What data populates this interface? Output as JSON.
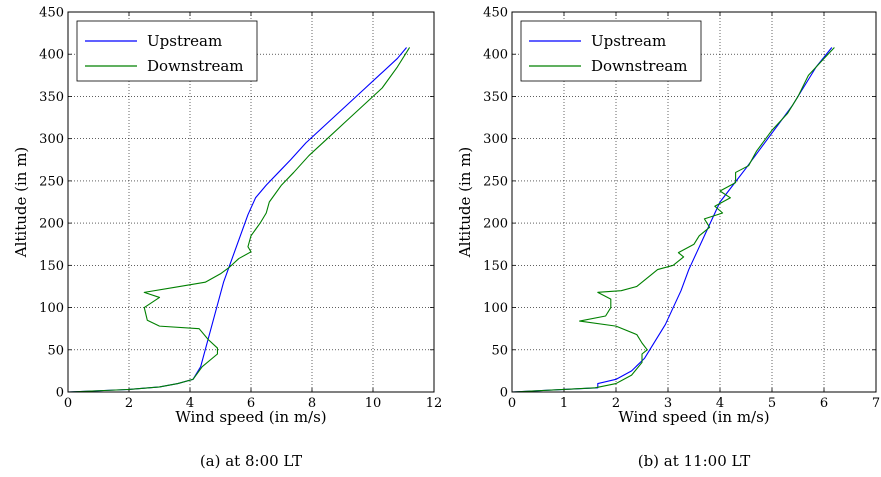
{
  "chart_data": [
    {
      "type": "line",
      "caption": "(a) at 8:00 LT",
      "xlabel": "Wind speed (in m/s)",
      "ylabel": "Altitude (in m)",
      "xlim": [
        0,
        12
      ],
      "ylim": [
        0,
        450
      ],
      "xticks": [
        "0",
        "2",
        "4",
        "6",
        "8",
        "10",
        "12"
      ],
      "yticks": [
        "0",
        "50",
        "100",
        "150",
        "200",
        "250",
        "300",
        "350",
        "400",
        "450"
      ],
      "grid": true,
      "legend_position": "top-left",
      "series": [
        {
          "name": "Upstream",
          "color": "#0000ff",
          "points": [
            [
              0,
              0
            ],
            [
              2.0,
              3
            ],
            [
              3.0,
              6
            ],
            [
              3.6,
              10
            ],
            [
              4.1,
              15
            ],
            [
              4.35,
              30
            ],
            [
              4.5,
              50
            ],
            [
              4.65,
              70
            ],
            [
              4.8,
              90
            ],
            [
              4.95,
              110
            ],
            [
              5.1,
              130
            ],
            [
              5.3,
              150
            ],
            [
              5.5,
              170
            ],
            [
              5.7,
              190
            ],
            [
              5.9,
              210
            ],
            [
              6.15,
              230
            ],
            [
              6.5,
              245
            ],
            [
              6.9,
              260
            ],
            [
              7.3,
              275
            ],
            [
              7.8,
              295
            ],
            [
              8.4,
              315
            ],
            [
              9.0,
              335
            ],
            [
              9.6,
              355
            ],
            [
              10.2,
              375
            ],
            [
              10.8,
              395
            ],
            [
              11.1,
              408
            ]
          ]
        },
        {
          "name": "Downstream",
          "color": "#008000",
          "points": [
            [
              0,
              0
            ],
            [
              2.0,
              3
            ],
            [
              3.0,
              6
            ],
            [
              3.6,
              10
            ],
            [
              4.1,
              15
            ],
            [
              4.4,
              30
            ],
            [
              4.9,
              45
            ],
            [
              4.9,
              52
            ],
            [
              4.6,
              62
            ],
            [
              4.3,
              75
            ],
            [
              3.0,
              78
            ],
            [
              2.6,
              85
            ],
            [
              2.5,
              100
            ],
            [
              3.0,
              112
            ],
            [
              2.5,
              118
            ],
            [
              3.5,
              124
            ],
            [
              4.5,
              130
            ],
            [
              5.0,
              140
            ],
            [
              5.3,
              148
            ],
            [
              5.6,
              158
            ],
            [
              6.0,
              166
            ],
            [
              5.9,
              172
            ],
            [
              6.0,
              185
            ],
            [
              6.3,
              200
            ],
            [
              6.5,
              212
            ],
            [
              6.6,
              225
            ],
            [
              7.0,
              245
            ],
            [
              7.4,
              260
            ],
            [
              7.9,
              280
            ],
            [
              8.5,
              300
            ],
            [
              9.1,
              320
            ],
            [
              9.7,
              340
            ],
            [
              10.3,
              360
            ],
            [
              10.8,
              385
            ],
            [
              11.2,
              408
            ]
          ]
        }
      ]
    },
    {
      "type": "line",
      "caption": "(b) at 11:00 LT",
      "xlabel": "Wind speed (in m/s)",
      "ylabel": "Altitude (in m)",
      "xlim": [
        0,
        7
      ],
      "ylim": [
        0,
        450
      ],
      "xticks": [
        "0",
        "1",
        "2",
        "3",
        "4",
        "5",
        "6",
        "7"
      ],
      "yticks": [
        "0",
        "50",
        "100",
        "150",
        "200",
        "250",
        "300",
        "350",
        "400",
        "450"
      ],
      "grid": true,
      "legend_position": "top-left",
      "series": [
        {
          "name": "Upstream",
          "color": "#0000ff",
          "points": [
            [
              0,
              0
            ],
            [
              1.0,
              3
            ],
            [
              1.65,
              5
            ],
            [
              1.65,
              10
            ],
            [
              2.0,
              15
            ],
            [
              2.3,
              25
            ],
            [
              2.55,
              40
            ],
            [
              2.75,
              60
            ],
            [
              2.95,
              80
            ],
            [
              3.1,
              100
            ],
            [
              3.25,
              120
            ],
            [
              3.4,
              145
            ],
            [
              3.55,
              165
            ],
            [
              3.7,
              185
            ],
            [
              3.85,
              205
            ],
            [
              4.0,
              225
            ],
            [
              4.25,
              245
            ],
            [
              4.5,
              265
            ],
            [
              4.8,
              290
            ],
            [
              5.1,
              315
            ],
            [
              5.4,
              340
            ],
            [
              5.6,
              360
            ],
            [
              5.85,
              385
            ],
            [
              6.15,
              408
            ]
          ]
        },
        {
          "name": "Downstream",
          "color": "#008000",
          "points": [
            [
              0,
              0
            ],
            [
              1.0,
              3
            ],
            [
              1.6,
              5
            ],
            [
              2.0,
              10
            ],
            [
              2.3,
              20
            ],
            [
              2.5,
              35
            ],
            [
              2.5,
              45
            ],
            [
              2.6,
              50
            ],
            [
              2.5,
              58
            ],
            [
              2.4,
              68
            ],
            [
              2.0,
              78
            ],
            [
              1.3,
              84
            ],
            [
              1.8,
              90
            ],
            [
              1.9,
              100
            ],
            [
              1.9,
              110
            ],
            [
              1.65,
              118
            ],
            [
              2.1,
              120
            ],
            [
              2.4,
              125
            ],
            [
              2.7,
              140
            ],
            [
              2.8,
              145
            ],
            [
              3.1,
              150
            ],
            [
              3.3,
              160
            ],
            [
              3.2,
              165
            ],
            [
              3.5,
              175
            ],
            [
              3.6,
              185
            ],
            [
              3.8,
              195
            ],
            [
              3.7,
              205
            ],
            [
              4.05,
              212
            ],
            [
              3.9,
              220
            ],
            [
              4.2,
              230
            ],
            [
              4.0,
              238
            ],
            [
              4.3,
              248
            ],
            [
              4.3,
              260
            ],
            [
              4.55,
              268
            ],
            [
              4.7,
              285
            ],
            [
              5.0,
              310
            ],
            [
              5.3,
              330
            ],
            [
              5.5,
              350
            ],
            [
              5.7,
              375
            ],
            [
              6.0,
              395
            ],
            [
              6.2,
              408
            ]
          ]
        }
      ]
    }
  ]
}
